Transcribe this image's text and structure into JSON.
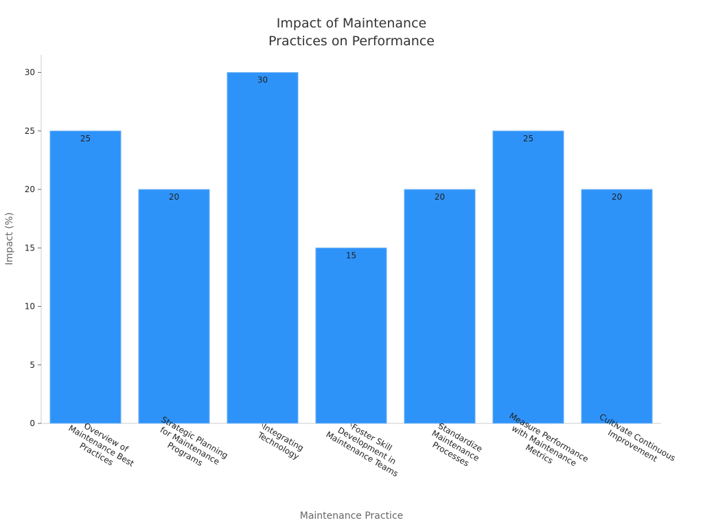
{
  "chart_data": {
    "type": "bar",
    "title": [
      "Impact of Maintenance",
      "Practices on Performance"
    ],
    "x_label": "Maintenance Practice",
    "y_label": "Impact (%)",
    "categories": [
      [
        "Overview of",
        "Maintenance Best",
        "Practices"
      ],
      [
        "Strategic Planning",
        "for Maintenance",
        "Programs"
      ],
      [
        "Integrating",
        "Technology"
      ],
      [
        "Foster Skill",
        "Development in",
        "Maintenance Teams"
      ],
      [
        "Standardize",
        "Maintenance",
        "Processes"
      ],
      [
        "Measure Performance",
        "with Maintenance",
        "Metrics"
      ],
      [
        "Cultivate Continuous",
        "Improvement"
      ]
    ],
    "values": [
      25,
      20,
      30,
      15,
      20,
      25,
      20
    ],
    "color": "#2e93f9",
    "ylim": [
      0,
      31.5
    ],
    "yticks": [
      0,
      5,
      10,
      15,
      20,
      25,
      30
    ],
    "grid": false
  }
}
